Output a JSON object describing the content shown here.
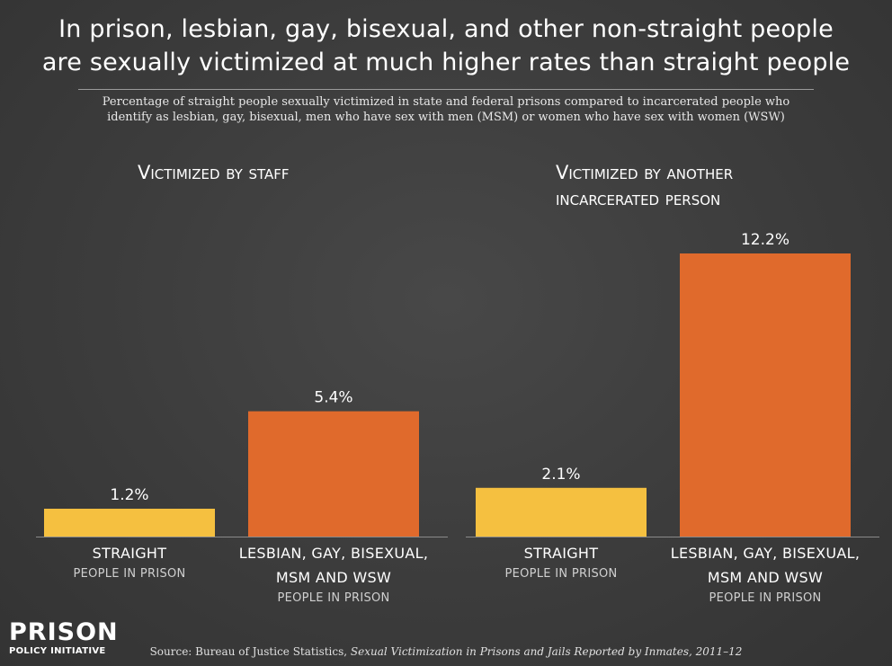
{
  "title": {
    "line1": "In prison, lesbian, gay, bisexual, and other non-straight people",
    "line2": "are sexually victimized at much higher rates than straight people"
  },
  "subtitle": {
    "line1": "Percentage of straight people sexually victimized in state and federal prisons compared to incarcerated people who",
    "line2": "identify as lesbian, gay, bisexual, men who have sex with men (MSM) or women who have sex with women (WSW)"
  },
  "colors": {
    "straight": "#f5c040",
    "lgb": "#e06a2c",
    "background": "#3e3e3e",
    "axis": "#8a8a8a"
  },
  "chart_data": [
    {
      "type": "bar",
      "title": "Victimized by staff",
      "categories": [
        "STRAIGHT PEOPLE IN PRISON",
        "LESBIAN, GAY, BISEXUAL, MSM AND WSW PEOPLE IN PRISON"
      ],
      "values": [
        1.2,
        5.4
      ],
      "value_labels": [
        "1.2%",
        "5.4%"
      ],
      "category_labels": [
        {
          "main": [
            "STRAIGHT"
          ],
          "sub": "PEOPLE IN PRISON"
        },
        {
          "main": [
            "LESBIAN, GAY, BISEXUAL,",
            "MSM AND WSW"
          ],
          "sub": "PEOPLE IN PRISON"
        }
      ],
      "ylim": [
        0,
        12.2
      ],
      "grid": false
    },
    {
      "type": "bar",
      "title": "Victimized by another incarcerated person",
      "title_lines": [
        "Victimized by another",
        "incarcerated person"
      ],
      "categories": [
        "STRAIGHT PEOPLE IN PRISON",
        "LESBIAN, GAY, BISEXUAL, MSM AND WSW PEOPLE IN PRISON"
      ],
      "values": [
        2.1,
        12.2
      ],
      "value_labels": [
        "2.1%",
        "12.2%"
      ],
      "category_labels": [
        {
          "main": [
            "STRAIGHT"
          ],
          "sub": "PEOPLE IN PRISON"
        },
        {
          "main": [
            "LESBIAN, GAY, BISEXUAL,",
            "MSM AND WSW"
          ],
          "sub": "PEOPLE IN PRISON"
        }
      ],
      "ylim": [
        0,
        12.2
      ],
      "grid": false
    }
  ],
  "logo": {
    "big": "PRISON",
    "small": "POLICY INITIATIVE"
  },
  "source": {
    "prefix": "Source: Bureau of Justice Statistics, ",
    "italic": "Sexual Victimization in Prisons and Jails Reported by Inmates, 2011–12"
  }
}
